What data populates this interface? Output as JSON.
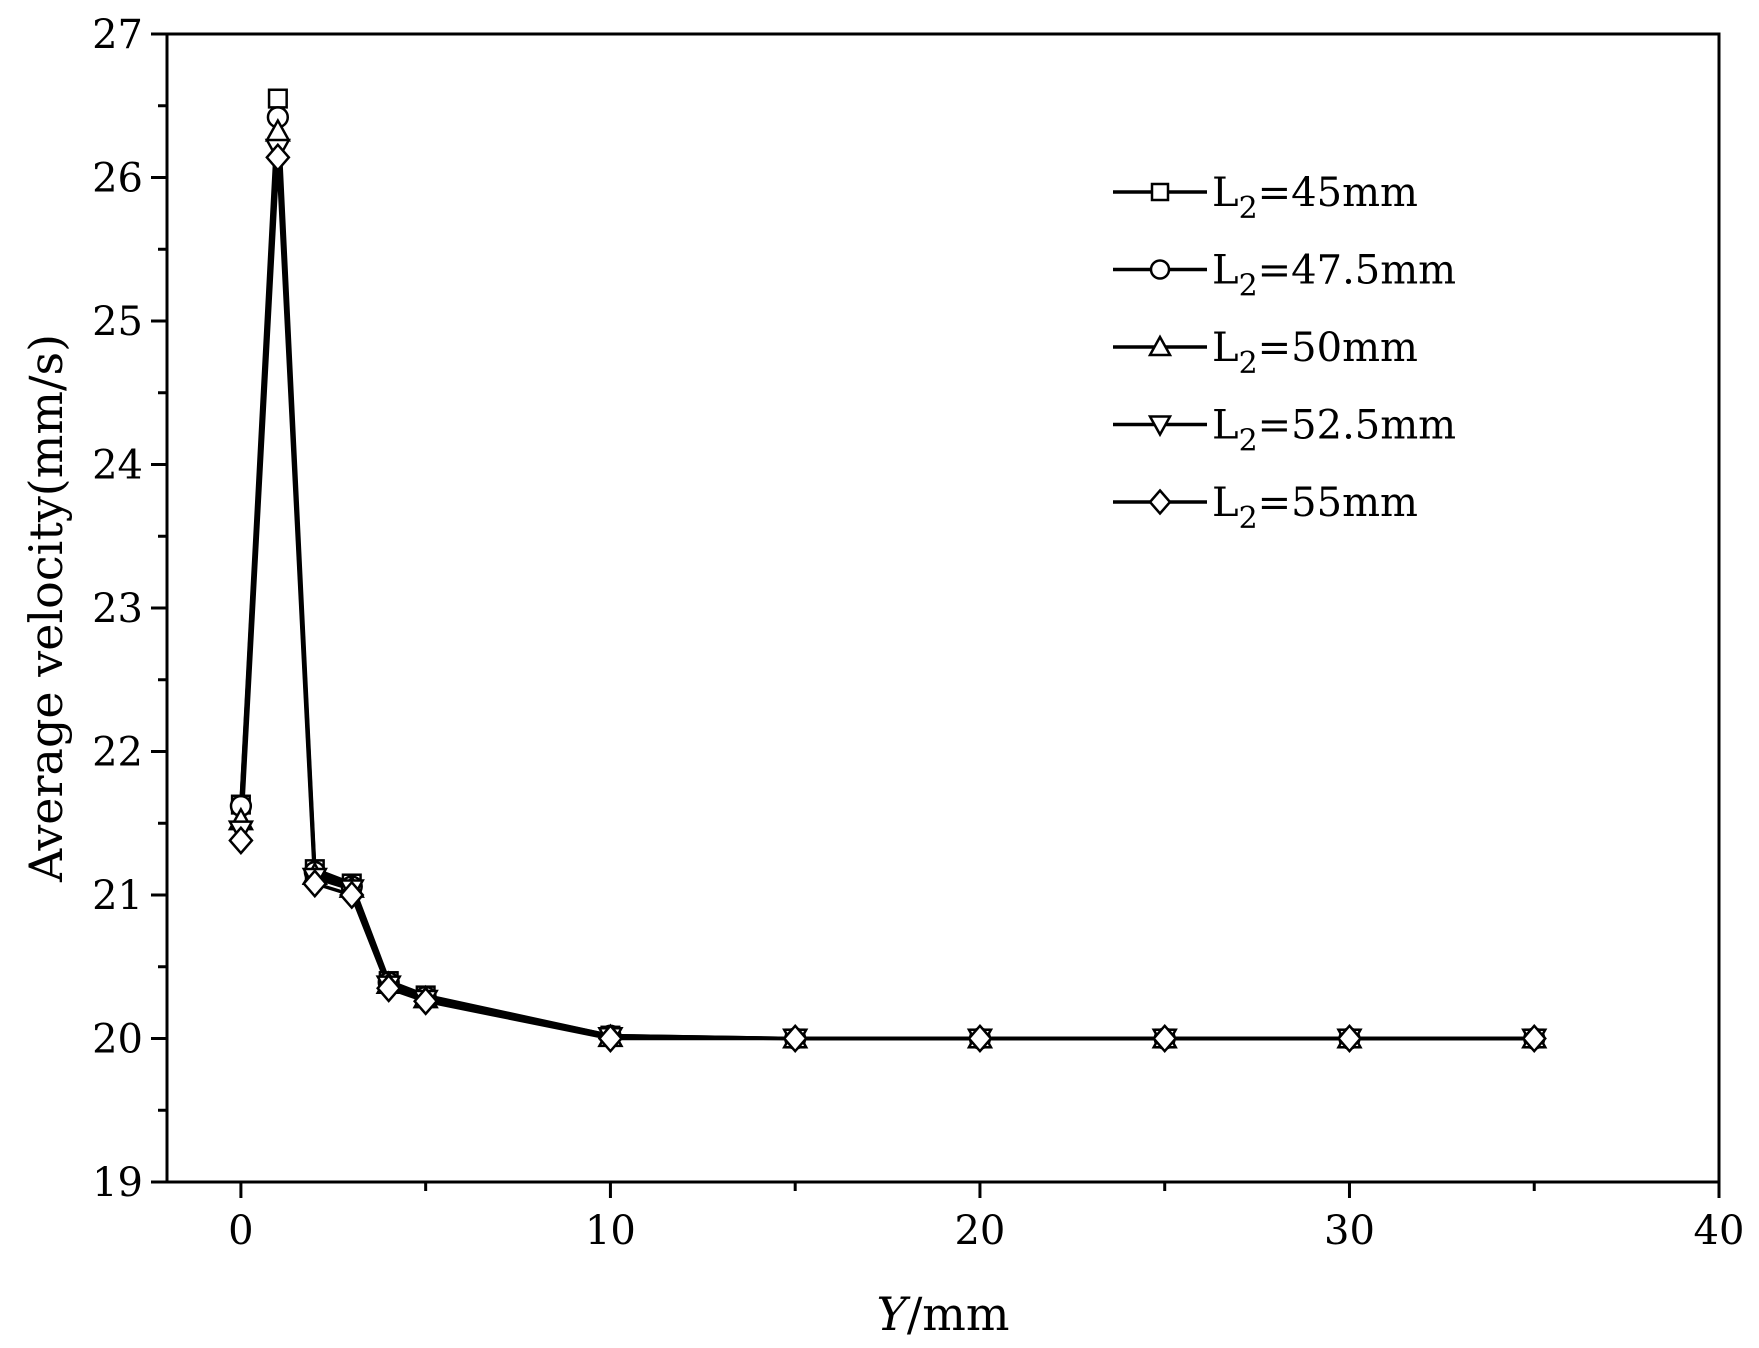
{
  "chart_data": {
    "type": "line",
    "xlabel_italic": "Y",
    "xlabel_rest": "/mm",
    "ylabel": "Average velocity(mm/s)",
    "xlim": [
      -2,
      40
    ],
    "ylim": [
      19,
      27
    ],
    "x_ticks": [
      0,
      10,
      20,
      30,
      40
    ],
    "y_ticks": [
      19,
      20,
      21,
      22,
      23,
      24,
      25,
      26,
      27
    ],
    "grid": false,
    "legend_position": "top-right",
    "x": [
      0,
      1,
      2,
      3,
      4,
      5,
      10,
      15,
      20,
      25,
      30,
      35
    ],
    "series": [
      {
        "name": "L2=45mm",
        "label_base": "L",
        "label_sub": "2",
        "label_rest": "=45mm",
        "marker": "square",
        "values": [
          21.63,
          26.55,
          21.18,
          21.08,
          20.4,
          20.3,
          20.02,
          20.0,
          20.0,
          20.0,
          20.0,
          20.0
        ]
      },
      {
        "name": "L2=47.5mm",
        "label_base": "L",
        "label_sub": "2",
        "label_rest": "=47.5mm",
        "marker": "circle",
        "values": [
          21.62,
          26.42,
          21.16,
          21.06,
          20.39,
          20.29,
          20.02,
          20.0,
          20.0,
          20.0,
          20.0,
          20.0
        ]
      },
      {
        "name": "L2=50mm",
        "label_base": "L",
        "label_sub": "2",
        "label_rest": "=50mm",
        "marker": "triangle-up",
        "values": [
          21.52,
          26.32,
          21.14,
          21.05,
          20.38,
          20.28,
          20.01,
          20.0,
          20.0,
          20.0,
          20.0,
          20.0
        ]
      },
      {
        "name": "L2=52.5mm",
        "label_base": "L",
        "label_sub": "2",
        "label_rest": "=52.5mm",
        "marker": "triangle-down",
        "values": [
          21.45,
          26.2,
          21.12,
          21.04,
          20.37,
          20.27,
          20.01,
          20.0,
          20.0,
          20.0,
          20.0,
          20.0
        ]
      },
      {
        "name": "L2=55mm",
        "label_base": "L",
        "label_sub": "2",
        "label_rest": "=55mm",
        "marker": "diamond",
        "values": [
          21.38,
          26.14,
          21.08,
          21.0,
          20.35,
          20.26,
          20.0,
          20.0,
          20.0,
          20.0,
          20.0,
          20.0
        ]
      }
    ]
  }
}
